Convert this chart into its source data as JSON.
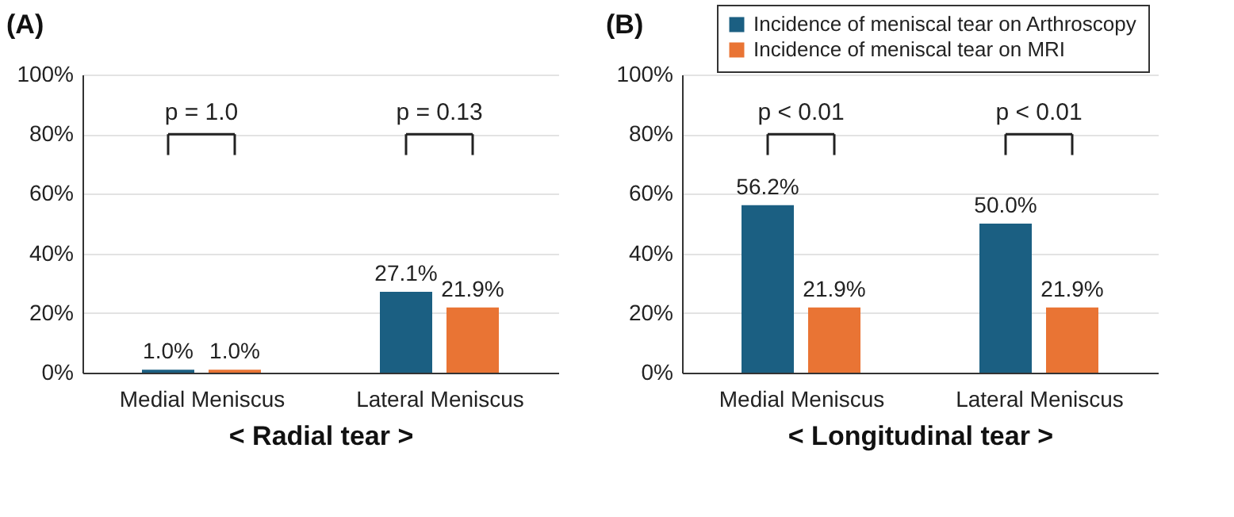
{
  "chart_data": [
    {
      "type": "bar",
      "title": "(A)",
      "xlabel": "< Radial tear >",
      "categories": [
        "Medial Meniscus",
        "Lateral Meniscus"
      ],
      "series": [
        {
          "color": "#1b5f82",
          "values": [
            1.0,
            27.1
          ],
          "value_labels": [
            "1.0%",
            "27.1%"
          ]
        },
        {
          "color": "#e97434",
          "values": [
            1.0,
            21.9
          ],
          "value_labels": [
            "1.0%",
            "21.9%"
          ]
        }
      ],
      "ylim": [
        0,
        100
      ],
      "yticks": [
        {
          "value": 0,
          "label": "0%"
        },
        {
          "value": 20,
          "label": "20%"
        },
        {
          "value": 40,
          "label": "40%"
        },
        {
          "value": 60,
          "label": "60%"
        },
        {
          "value": 80,
          "label": "80%"
        },
        {
          "value": 100,
          "label": "100%"
        }
      ],
      "grid": "y",
      "annotations": [
        "p = 1.0",
        "p = 0.13"
      ]
    },
    {
      "type": "bar",
      "title": "(B)",
      "xlabel": "< Longitudinal tear >",
      "categories": [
        "Medial Meniscus",
        "Lateral Meniscus"
      ],
      "series": [
        {
          "name": "Incidence of meniscal tear on Arthroscopy",
          "color": "#1b5f82",
          "values": [
            56.2,
            50.0
          ],
          "value_labels": [
            "56.2%",
            "50.0%"
          ]
        },
        {
          "name": "Incidence of meniscal tear on MRI",
          "color": "#e97434",
          "values": [
            21.9,
            21.9
          ],
          "value_labels": [
            "21.9%",
            "21.9%"
          ]
        }
      ],
      "ylim": [
        0,
        100
      ],
      "yticks": [
        {
          "value": 0,
          "label": "0%"
        },
        {
          "value": 20,
          "label": "20%"
        },
        {
          "value": 40,
          "label": "40%"
        },
        {
          "value": 60,
          "label": "60%"
        },
        {
          "value": 80,
          "label": "80%"
        },
        {
          "value": 100,
          "label": "100%"
        }
      ],
      "grid": "y",
      "legend": "top right",
      "annotations": [
        "p < 0.01",
        "p < 0.01"
      ]
    }
  ]
}
